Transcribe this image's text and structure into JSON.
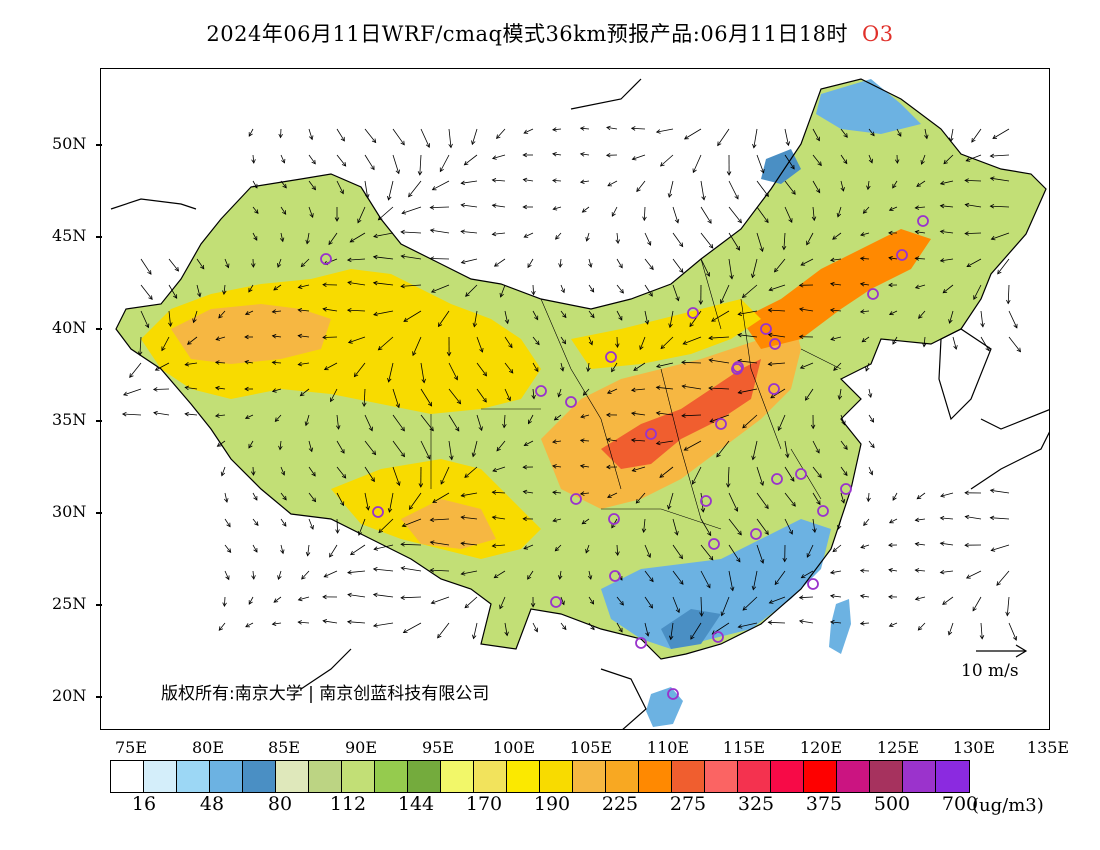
{
  "title": {
    "main": "2024年06月11日WRF/cmaq模式36km预报产品:06月11日18时",
    "species": "O3",
    "species_color": "#e0302a"
  },
  "axes": {
    "lat_labels": [
      "50N",
      "45N",
      "40N",
      "35N",
      "30N",
      "25N",
      "20N"
    ],
    "lon_labels": [
      "75E",
      "80E",
      "85E",
      "90E",
      "95E",
      "100E",
      "105E",
      "110E",
      "115E",
      "120E",
      "125E",
      "130E",
      "135E"
    ]
  },
  "map": {
    "copyright": "版权所有:南京大学 | 南京创蓝科技有限公司",
    "wind_reference_label": "10 m/s",
    "marker_color": "#9933cc"
  },
  "legend": {
    "colors": [
      "#ffffff",
      "#d4eefa",
      "#9cd7f5",
      "#6cb2e2",
      "#4a8fc4",
      "#dfe8bb",
      "#bcd483",
      "#c2df76",
      "#95cb4e",
      "#74ab3d",
      "#f2f769",
      "#f2e35c",
      "#fbe900",
      "#f8db00",
      "#f6b742",
      "#f8a822",
      "#ff8901",
      "#f05e2f",
      "#fb6463",
      "#f4324f",
      "#f70a47",
      "#fe0000",
      "#cb1481",
      "#a6325e",
      "#9b33cc",
      "#8b2ae0"
    ],
    "labels": [
      "16",
      "48",
      "80",
      "112",
      "144",
      "170",
      "190",
      "225",
      "275",
      "325",
      "375",
      "500",
      "700"
    ],
    "units": "(ug/m3)"
  }
}
